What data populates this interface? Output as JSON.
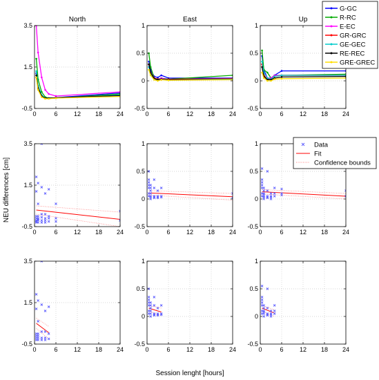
{
  "figure": {
    "ylabel": "NEU differences [cm]",
    "xlabel": "Session lenght [hours]"
  },
  "chart_data": [
    {
      "type": "line",
      "row": 0,
      "col": 0,
      "title": "North",
      "xlim": [
        0,
        24
      ],
      "ylim": [
        -0.5,
        3.5
      ],
      "xticks": [
        0,
        6,
        12,
        18,
        24
      ],
      "yticks": [
        -0.5,
        1.5,
        3.5
      ],
      "grid": true,
      "series": [
        {
          "name": "G-GC",
          "color": "#0000ff",
          "x": [
            0.5,
            1,
            2,
            3,
            4,
            6,
            24
          ],
          "y": [
            1.2,
            0.55,
            0.1,
            0.0,
            0.0,
            0.02,
            0.25
          ]
        },
        {
          "name": "R-RC",
          "color": "#00aa00",
          "x": [
            0.5,
            1,
            2,
            3,
            4,
            6,
            24
          ],
          "y": [
            1.9,
            0.9,
            0.3,
            0.05,
            0.0,
            0.0,
            0.2
          ]
        },
        {
          "name": "E-EC",
          "color": "#ff00ff",
          "x": [
            0.5,
            1,
            2,
            3,
            4,
            6,
            24
          ],
          "y": [
            3.5,
            2.2,
            1.0,
            0.4,
            0.2,
            0.1,
            0.3
          ]
        },
        {
          "name": "GR-GRC",
          "color": "#ff0000",
          "x": [
            0.5,
            1,
            2,
            3,
            4,
            6,
            24
          ],
          "y": [
            1.0,
            0.45,
            0.08,
            -0.02,
            -0.02,
            0.0,
            0.15
          ]
        },
        {
          "name": "GE-GEC",
          "color": "#00cccc",
          "x": [
            0.5,
            1,
            2,
            3,
            4,
            6,
            24
          ],
          "y": [
            1.3,
            0.6,
            0.15,
            0.0,
            0.0,
            0.0,
            0.15
          ]
        },
        {
          "name": "RE-REC",
          "color": "#000000",
          "x": [
            0.5,
            1,
            2,
            3,
            4,
            6,
            24
          ],
          "y": [
            1.1,
            0.5,
            0.1,
            0.0,
            0.0,
            0.02,
            0.12
          ]
        },
        {
          "name": "GRE-GREC",
          "color": "#ffdd00",
          "x": [
            0.5,
            1,
            2,
            3,
            4,
            6,
            24
          ],
          "y": [
            1.0,
            0.4,
            0.05,
            -0.03,
            -0.03,
            0.0,
            0.08
          ]
        }
      ]
    },
    {
      "type": "line",
      "row": 0,
      "col": 1,
      "title": "East",
      "xlim": [
        0,
        24
      ],
      "ylim": [
        -0.5,
        1
      ],
      "xticks": [
        0,
        6,
        12,
        18,
        24
      ],
      "yticks": [
        -0.5,
        0,
        0.5,
        1
      ],
      "grid": true,
      "series": [
        {
          "name": "G-GC",
          "color": "#0000ff",
          "x": [
            0.5,
            1,
            2,
            3,
            4,
            6,
            24
          ],
          "y": [
            0.35,
            0.2,
            0.08,
            0.06,
            0.1,
            0.05,
            0.05
          ]
        },
        {
          "name": "R-RC",
          "color": "#00aa00",
          "x": [
            0.5,
            1,
            2,
            3,
            4,
            6,
            24
          ],
          "y": [
            0.5,
            0.25,
            0.05,
            0.03,
            0.05,
            0.03,
            0.1
          ]
        },
        {
          "name": "E-EC",
          "color": "#ff00ff",
          "x": [
            0.5,
            1,
            2,
            3,
            4,
            6,
            24
          ],
          "y": [
            0.3,
            0.15,
            0.05,
            0.02,
            0.05,
            0.02,
            0.03
          ]
        },
        {
          "name": "GR-GRC",
          "color": "#ff0000",
          "x": [
            0.5,
            1,
            2,
            3,
            4,
            6,
            24
          ],
          "y": [
            0.3,
            0.15,
            0.05,
            0.03,
            0.02,
            0.03,
            0.04
          ]
        },
        {
          "name": "GE-GEC",
          "color": "#00cccc",
          "x": [
            0.5,
            1,
            2,
            3,
            4,
            6,
            24
          ],
          "y": [
            0.25,
            0.12,
            0.03,
            0.02,
            0.03,
            0.02,
            0.03
          ]
        },
        {
          "name": "RE-REC",
          "color": "#000000",
          "x": [
            0.5,
            1,
            2,
            3,
            4,
            6,
            24
          ],
          "y": [
            0.3,
            0.15,
            0.04,
            0.02,
            0.03,
            0.02,
            0.02
          ]
        },
        {
          "name": "GRE-GREC",
          "color": "#ffdd00",
          "x": [
            0.5,
            1,
            2,
            3,
            4,
            6,
            24
          ],
          "y": [
            0.2,
            0.1,
            0.02,
            0.0,
            0.02,
            0.01,
            0.02
          ]
        }
      ]
    },
    {
      "type": "line",
      "row": 0,
      "col": 2,
      "title": "Up",
      "xlim": [
        0,
        24
      ],
      "ylim": [
        -0.5,
        1
      ],
      "xticks": [
        0,
        6,
        12,
        18,
        24
      ],
      "yticks": [
        -0.5,
        0,
        0.5,
        1
      ],
      "grid": true,
      "series": [
        {
          "name": "G-GC",
          "color": "#0000ff",
          "x": [
            0.5,
            1,
            2,
            3,
            4,
            6,
            24
          ],
          "y": [
            0.45,
            0.2,
            0.05,
            0.05,
            0.1,
            0.18,
            0.18
          ]
        },
        {
          "name": "R-RC",
          "color": "#00aa00",
          "x": [
            0.5,
            1,
            2,
            3,
            4,
            6,
            24
          ],
          "y": [
            0.55,
            0.2,
            0.15,
            0.05,
            0.1,
            0.1,
            0.12
          ]
        },
        {
          "name": "E-EC",
          "color": "#ff00ff",
          "x": [
            0.5,
            1,
            2,
            3,
            4,
            6,
            24
          ],
          "y": [
            0.3,
            0.15,
            0.05,
            0.05,
            0.1,
            0.1,
            0.1
          ]
        },
        {
          "name": "GR-GRC",
          "color": "#ff0000",
          "x": [
            0.5,
            1,
            2,
            3,
            4,
            6,
            24
          ],
          "y": [
            0.3,
            0.1,
            0.03,
            0.03,
            0.08,
            0.1,
            0.1
          ]
        },
        {
          "name": "GE-GEC",
          "color": "#00cccc",
          "x": [
            0.5,
            1,
            2,
            3,
            4,
            6,
            24
          ],
          "y": [
            0.35,
            0.15,
            0.05,
            0.03,
            0.08,
            0.1,
            0.1
          ]
        },
        {
          "name": "RE-REC",
          "color": "#000000",
          "x": [
            0.5,
            1,
            2,
            3,
            4,
            6,
            24
          ],
          "y": [
            0.25,
            0.08,
            0.02,
            0.02,
            0.05,
            0.07,
            0.08
          ]
        },
        {
          "name": "GRE-GREC",
          "color": "#ffdd00",
          "x": [
            0.5,
            1,
            2,
            3,
            4,
            6,
            24
          ],
          "y": [
            0.15,
            0.05,
            0.0,
            0.0,
            0.03,
            0.04,
            0.05
          ]
        }
      ]
    },
    {
      "type": "scatter",
      "row": 1,
      "col": 0,
      "xlim": [
        0,
        24
      ],
      "ylim": [
        -0.5,
        3.5
      ],
      "xticks": [
        0,
        6,
        12,
        18,
        24
      ],
      "yticks": [
        -0.5,
        1.5,
        3.5
      ],
      "grid": true,
      "data": {
        "color": "#6060ff",
        "x": [
          0.5,
          0.5,
          0.5,
          0.5,
          0.5,
          0.5,
          0.5,
          1,
          1,
          1,
          1,
          1,
          1,
          1,
          2,
          2,
          2,
          2,
          2,
          2,
          3,
          3,
          3,
          3,
          3,
          4,
          4,
          4,
          4,
          6,
          6,
          6,
          24,
          24
        ],
        "y": [
          1.9,
          1.2,
          0.0,
          -0.1,
          -0.2,
          -0.25,
          -0.3,
          1.6,
          0.6,
          0.0,
          -0.1,
          -0.15,
          -0.2,
          -0.3,
          3.5,
          1.4,
          0.1,
          -0.05,
          -0.2,
          -0.3,
          1.1,
          0.1,
          -0.1,
          -0.2,
          -0.3,
          1.3,
          0.0,
          -0.1,
          -0.25,
          0.6,
          -0.1,
          -0.25,
          0.25,
          -0.2
        ]
      },
      "fit": {
        "color": "#ff0000",
        "x": [
          0.5,
          24
        ],
        "y": [
          0.3,
          -0.15
        ]
      },
      "bounds": {
        "color": "#ff8080",
        "x": [
          0.5,
          24
        ],
        "upper": [
          0.5,
          0.2
        ],
        "lower": [
          0.1,
          -0.5
        ]
      }
    },
    {
      "type": "scatter",
      "row": 1,
      "col": 1,
      "xlim": [
        0,
        24
      ],
      "ylim": [
        -0.5,
        1
      ],
      "xticks": [
        0,
        6,
        12,
        18,
        24
      ],
      "yticks": [
        -0.5,
        0,
        0.5,
        1
      ],
      "grid": true,
      "data": {
        "color": "#6060ff",
        "x": [
          0.5,
          0.5,
          0.5,
          0.5,
          0.5,
          0.5,
          0.5,
          1,
          1,
          1,
          1,
          1,
          1,
          1,
          2,
          2,
          2,
          2,
          2,
          3,
          3,
          3,
          3,
          4,
          4,
          4,
          24,
          24
        ],
        "y": [
          0.5,
          0.35,
          0.3,
          0.25,
          0.2,
          0.1,
          0.05,
          0.25,
          0.2,
          0.15,
          0.1,
          0.05,
          0.03,
          0.0,
          0.35,
          0.2,
          0.05,
          0.03,
          0.02,
          0.15,
          0.05,
          0.03,
          0.02,
          0.2,
          0.05,
          0.03,
          0.1,
          0.02
        ]
      },
      "fit": {
        "color": "#ff0000",
        "x": [
          0.5,
          24
        ],
        "y": [
          0.11,
          0.04
        ]
      },
      "bounds": {
        "color": "#ff8080",
        "x": [
          0.5,
          24
        ],
        "upper": [
          0.15,
          0.1
        ],
        "lower": [
          0.07,
          -0.02
        ]
      }
    },
    {
      "type": "scatter",
      "row": 1,
      "col": 2,
      "xlim": [
        0,
        24
      ],
      "ylim": [
        -0.5,
        1
      ],
      "xticks": [
        0,
        6,
        12,
        18,
        24
      ],
      "yticks": [
        -0.5,
        0,
        0.5,
        1
      ],
      "grid": true,
      "data": {
        "color": "#6060ff",
        "x": [
          0.5,
          0.5,
          0.5,
          0.5,
          0.5,
          0.5,
          0.5,
          1,
          1,
          1,
          1,
          1,
          1,
          1,
          2,
          2,
          2,
          2,
          2,
          3,
          3,
          3,
          3,
          4,
          4,
          4,
          6,
          6,
          6,
          24,
          24
        ],
        "y": [
          0.55,
          0.35,
          0.3,
          0.25,
          0.2,
          0.1,
          0.05,
          0.2,
          0.15,
          0.1,
          0.08,
          0.05,
          0.03,
          0.0,
          0.5,
          0.15,
          0.05,
          0.03,
          0.02,
          0.1,
          0.05,
          0.03,
          0.0,
          0.2,
          0.1,
          0.05,
          0.18,
          0.1,
          0.07,
          0.15,
          0.05
        ]
      },
      "fit": {
        "color": "#ff0000",
        "x": [
          0.5,
          24
        ],
        "y": [
          0.13,
          0.05
        ]
      },
      "bounds": {
        "color": "#ff8080",
        "x": [
          0.5,
          24
        ],
        "upper": [
          0.17,
          0.1
        ],
        "lower": [
          0.09,
          0.0
        ]
      }
    },
    {
      "type": "scatter",
      "row": 2,
      "col": 0,
      "xlim": [
        0,
        24
      ],
      "ylim": [
        -0.5,
        3.5
      ],
      "xticks": [
        0,
        6,
        12,
        18,
        24
      ],
      "yticks": [
        -0.5,
        1.5,
        3.5
      ],
      "grid": true,
      "data": {
        "color": "#6060ff",
        "x": [
          0.5,
          0.5,
          0.5,
          0.5,
          0.5,
          0.5,
          1,
          1,
          1,
          1,
          1,
          1,
          2,
          2,
          2,
          2,
          2,
          3,
          3,
          3,
          3,
          4,
          4,
          4
        ],
        "y": [
          1.9,
          1.2,
          0.0,
          -0.1,
          -0.2,
          -0.3,
          1.6,
          0.6,
          0.0,
          -0.1,
          -0.2,
          -0.3,
          3.5,
          1.4,
          0.1,
          -0.2,
          -0.3,
          1.1,
          0.1,
          -0.2,
          -0.3,
          1.3,
          0.0,
          -0.25
        ]
      },
      "fit": {
        "color": "#ff0000",
        "x": [
          0.5,
          4
        ],
        "y": [
          0.5,
          0.05
        ]
      },
      "bounds": {
        "color": "#ff8080",
        "x": [
          0.5,
          4
        ],
        "upper": [
          0.75,
          0.35
        ],
        "lower": [
          0.25,
          -0.25
        ]
      }
    },
    {
      "type": "scatter",
      "row": 2,
      "col": 1,
      "xlim": [
        0,
        24
      ],
      "ylim": [
        -0.5,
        1
      ],
      "xticks": [
        0,
        6,
        12,
        18,
        24
      ],
      "yticks": [
        -0.5,
        0,
        0.5,
        1
      ],
      "grid": true,
      "data": {
        "color": "#6060ff",
        "x": [
          0.5,
          0.5,
          0.5,
          0.5,
          0.5,
          0.5,
          0.5,
          1,
          1,
          1,
          1,
          1,
          1,
          2,
          2,
          2,
          2,
          2,
          3,
          3,
          3,
          3,
          4,
          4,
          4
        ],
        "y": [
          0.5,
          0.35,
          0.3,
          0.25,
          0.2,
          0.1,
          0.05,
          0.25,
          0.2,
          0.15,
          0.1,
          0.05,
          0.0,
          0.35,
          0.2,
          0.05,
          0.03,
          0.02,
          0.15,
          0.05,
          0.03,
          0.02,
          0.2,
          0.05,
          0.03
        ]
      },
      "fit": {
        "color": "#ff0000",
        "x": [
          0.5,
          4
        ],
        "y": [
          0.15,
          0.08
        ]
      },
      "bounds": {
        "color": "#ff8080",
        "x": [
          0.5,
          4
        ],
        "upper": [
          0.2,
          0.15
        ],
        "lower": [
          0.1,
          0.01
        ]
      }
    },
    {
      "type": "scatter",
      "row": 2,
      "col": 2,
      "xlim": [
        0,
        24
      ],
      "ylim": [
        -0.5,
        1
      ],
      "xticks": [
        0,
        6,
        12,
        18,
        24
      ],
      "yticks": [
        -0.5,
        0,
        0.5,
        1
      ],
      "grid": true,
      "data": {
        "color": "#6060ff",
        "x": [
          0.5,
          0.5,
          0.5,
          0.5,
          0.5,
          0.5,
          0.5,
          1,
          1,
          1,
          1,
          1,
          1,
          2,
          2,
          2,
          2,
          2,
          3,
          3,
          3,
          3,
          4,
          4,
          4
        ],
        "y": [
          0.55,
          0.35,
          0.3,
          0.25,
          0.2,
          0.1,
          0.05,
          0.2,
          0.15,
          0.1,
          0.08,
          0.05,
          0.0,
          0.5,
          0.15,
          0.05,
          0.03,
          0.02,
          0.1,
          0.05,
          0.03,
          0.0,
          0.2,
          0.1,
          0.05
        ]
      },
      "fit": {
        "color": "#ff0000",
        "x": [
          0.5,
          4
        ],
        "y": [
          0.15,
          0.06
        ]
      },
      "bounds": {
        "color": "#ff8080",
        "x": [
          0.5,
          4
        ],
        "upper": [
          0.2,
          0.12
        ],
        "lower": [
          0.1,
          0.0
        ]
      }
    }
  ],
  "legend_top": {
    "placement": "top-right",
    "entries": [
      {
        "label": "G-GC",
        "color": "#0000ff"
      },
      {
        "label": "R-RC",
        "color": "#00aa00"
      },
      {
        "label": "E-EC",
        "color": "#ff00ff"
      },
      {
        "label": "GR-GRC",
        "color": "#ff0000"
      },
      {
        "label": "GE-GEC",
        "color": "#00cccc"
      },
      {
        "label": "RE-REC",
        "color": "#000000"
      },
      {
        "label": "GRE-GREC",
        "color": "#ffdd00"
      }
    ]
  },
  "legend_mid": {
    "placement": "top-right",
    "entries": [
      {
        "label": "Data",
        "color": "#6060ff",
        "kind": "marker"
      },
      {
        "label": "Fit",
        "color": "#ff0000",
        "kind": "line"
      },
      {
        "label": "Confidence bounds",
        "color": "#ff8080",
        "kind": "dotted"
      }
    ]
  }
}
